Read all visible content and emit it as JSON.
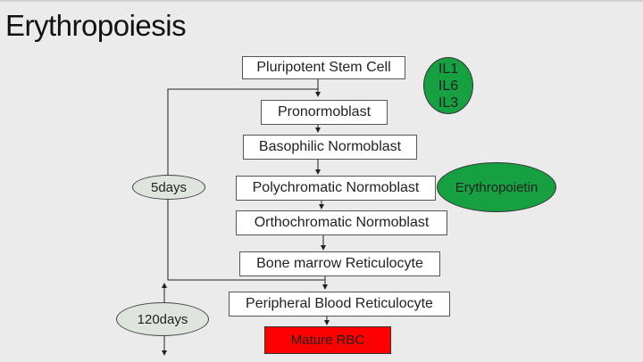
{
  "title": "Erythropoiesis",
  "stages": [
    "Pluripotent Stem Cell",
    "Pronormoblast",
    "Basophilic Normoblast",
    "Polychromatic Normoblast",
    "Orthochromatic Normoblast",
    "Bone marrow Reticulocyte",
    "Peripheral Blood Reticulocyte",
    "Mature RBC"
  ],
  "cytokines": [
    "IL1",
    "IL6",
    "IL3"
  ],
  "hormone": "Erythropoietin",
  "durations": {
    "marrow": "5days",
    "circulation": "120days"
  },
  "colors": {
    "growth_factor": "#16a041",
    "mature_rbc": "#ff0000",
    "duration_oval": "#dde5dd"
  }
}
